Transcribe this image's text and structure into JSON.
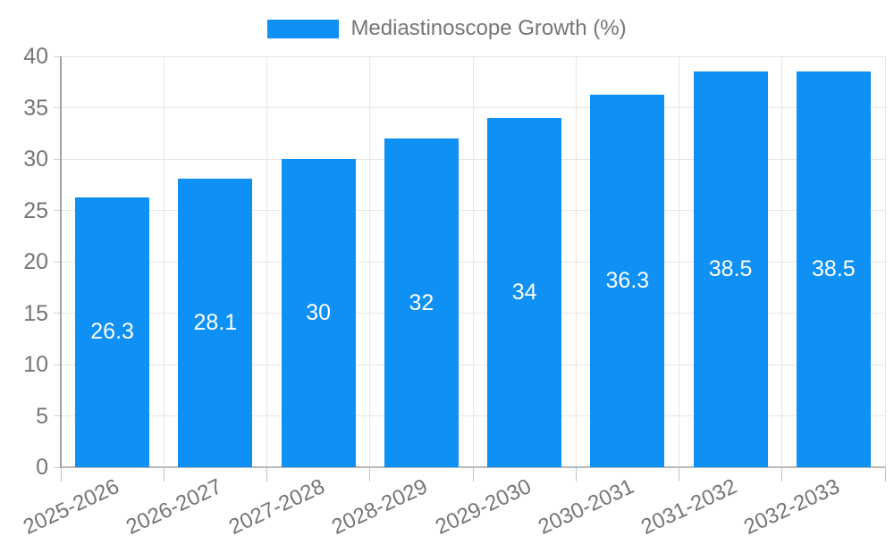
{
  "page": {
    "background": "#ffffff"
  },
  "legend": {
    "label": "Mediastinoscope Growth (%)"
  },
  "chart_data": {
    "type": "bar",
    "title": "",
    "xlabel": "",
    "ylabel": "",
    "categories": [
      "2025-2026",
      "2026-2027",
      "2027-2028",
      "2028-2029",
      "2029-2030",
      "2030-2031",
      "2031-2032",
      "2032-2033"
    ],
    "series": [
      {
        "name": "Mediastinoscope Growth (%)",
        "values": [
          26.3,
          28.1,
          30,
          32,
          34,
          36.3,
          38.5,
          38.5
        ]
      }
    ],
    "value_labels": [
      "26.3",
      "28.1",
      "30",
      "32",
      "34",
      "36.3",
      "38.5",
      "38.5"
    ],
    "ylim": [
      0,
      40
    ],
    "yticks": [
      0,
      5,
      10,
      15,
      20,
      25,
      30,
      35,
      40
    ],
    "grid": true,
    "legend_position": "top-center",
    "x_tick_rotation_deg": -25,
    "colors": {
      "bar": "#0e90f5",
      "text": "#757575",
      "grid": "#e6e6e6",
      "axis_y": "#a3a3a3",
      "axis_x": "#b9b9b9",
      "tick_y": "#d0d0d0",
      "tick_x": "#c0c0c0",
      "value_label": "#ffffff",
      "background": "#ffffff"
    }
  }
}
